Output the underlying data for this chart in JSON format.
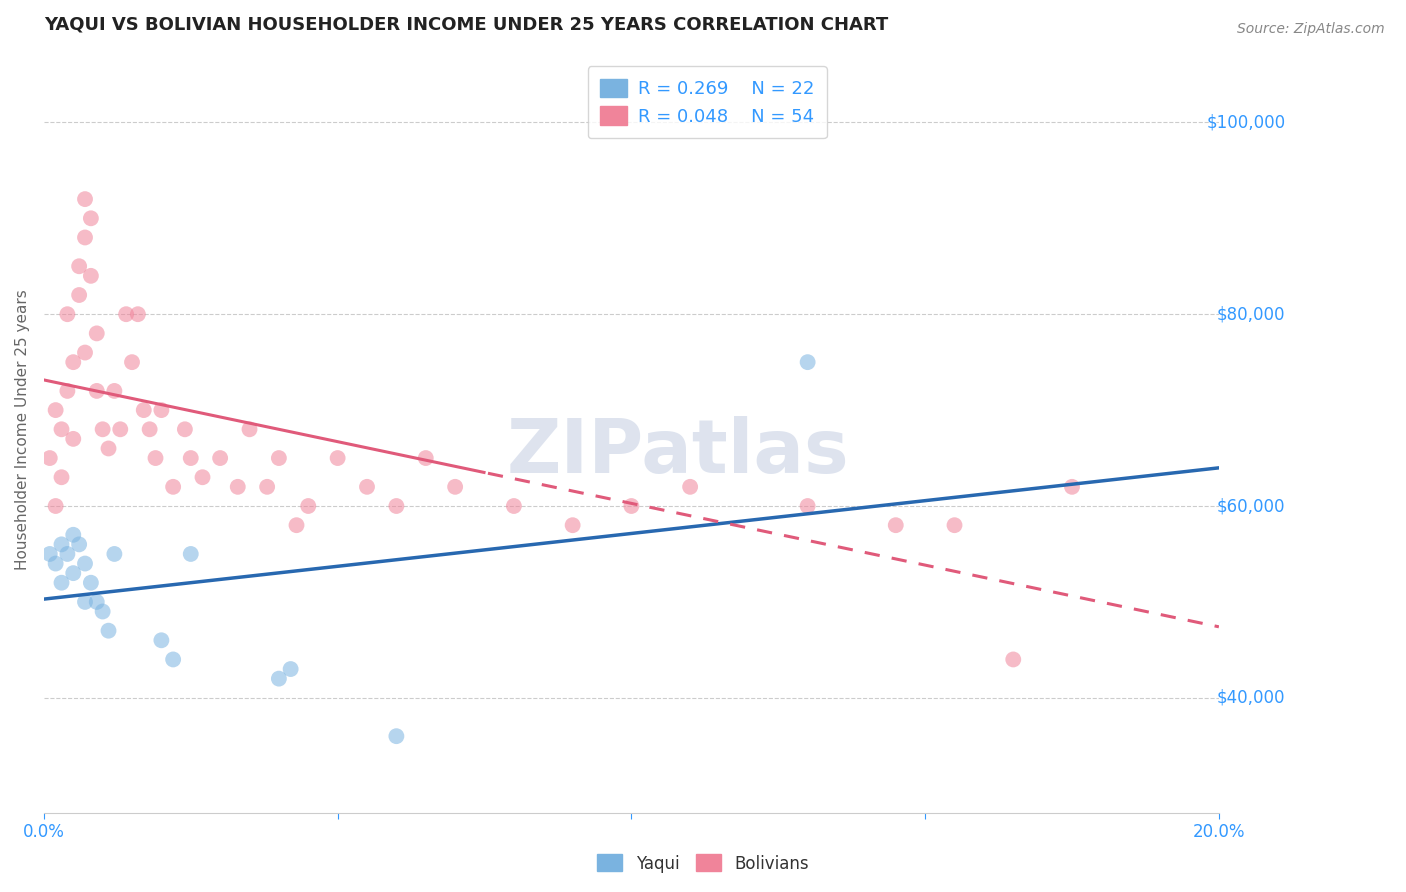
{
  "title": "YAQUI VS BOLIVIAN HOUSEHOLDER INCOME UNDER 25 YEARS CORRELATION CHART",
  "source": "Source: ZipAtlas.com",
  "ylabel_text": "Householder Income Under 25 years",
  "xlim": [
    0.0,
    0.2
  ],
  "ylim": [
    28000,
    108000
  ],
  "xticks": [
    0.0,
    0.05,
    0.1,
    0.15,
    0.2
  ],
  "xticklabels": [
    "0.0%",
    "",
    "",
    "",
    "20.0%"
  ],
  "yticks": [
    40000,
    60000,
    80000,
    100000
  ],
  "yticklabels": [
    "$40,000",
    "$60,000",
    "$80,000",
    "$100,000"
  ],
  "legend_R_yaqui": "R = 0.269",
  "legend_N_yaqui": "N = 22",
  "legend_R_bolivian": "R = 0.048",
  "legend_N_bolivian": "N = 54",
  "yaqui_color": "#7ab3e0",
  "bolivian_color": "#f0849a",
  "yaqui_line_color": "#2868b0",
  "bolivian_line_color": "#e05a7a",
  "background_color": "#ffffff",
  "grid_color": "#cccccc",
  "axis_label_color": "#3399ff",
  "title_color": "#222222",
  "watermark": "ZIPatlas",
  "yaqui_x": [
    0.001,
    0.002,
    0.003,
    0.003,
    0.004,
    0.005,
    0.005,
    0.006,
    0.007,
    0.007,
    0.008,
    0.009,
    0.01,
    0.011,
    0.012,
    0.02,
    0.022,
    0.025,
    0.04,
    0.042,
    0.06,
    0.13
  ],
  "yaqui_y": [
    55000,
    54000,
    56000,
    52000,
    55000,
    57000,
    53000,
    56000,
    54000,
    50000,
    52000,
    50000,
    49000,
    47000,
    55000,
    46000,
    44000,
    55000,
    42000,
    43000,
    36000,
    75000
  ],
  "bolivian_x": [
    0.001,
    0.002,
    0.002,
    0.003,
    0.003,
    0.004,
    0.004,
    0.005,
    0.005,
    0.006,
    0.006,
    0.007,
    0.007,
    0.007,
    0.008,
    0.008,
    0.009,
    0.009,
    0.01,
    0.011,
    0.012,
    0.013,
    0.014,
    0.015,
    0.016,
    0.017,
    0.018,
    0.019,
    0.02,
    0.022,
    0.024,
    0.025,
    0.027,
    0.03,
    0.033,
    0.035,
    0.038,
    0.04,
    0.043,
    0.045,
    0.05,
    0.055,
    0.06,
    0.065,
    0.07,
    0.08,
    0.09,
    0.1,
    0.11,
    0.13,
    0.145,
    0.155,
    0.165,
    0.175
  ],
  "bolivian_y": [
    65000,
    60000,
    70000,
    63000,
    68000,
    72000,
    80000,
    75000,
    67000,
    85000,
    82000,
    88000,
    92000,
    76000,
    90000,
    84000,
    78000,
    72000,
    68000,
    66000,
    72000,
    68000,
    80000,
    75000,
    80000,
    70000,
    68000,
    65000,
    70000,
    62000,
    68000,
    65000,
    63000,
    65000,
    62000,
    68000,
    62000,
    65000,
    58000,
    60000,
    65000,
    62000,
    60000,
    65000,
    62000,
    60000,
    58000,
    60000,
    62000,
    60000,
    58000,
    58000,
    44000,
    62000
  ],
  "marker_size": 130,
  "marker_alpha": 0.55,
  "line_width": 2.2
}
